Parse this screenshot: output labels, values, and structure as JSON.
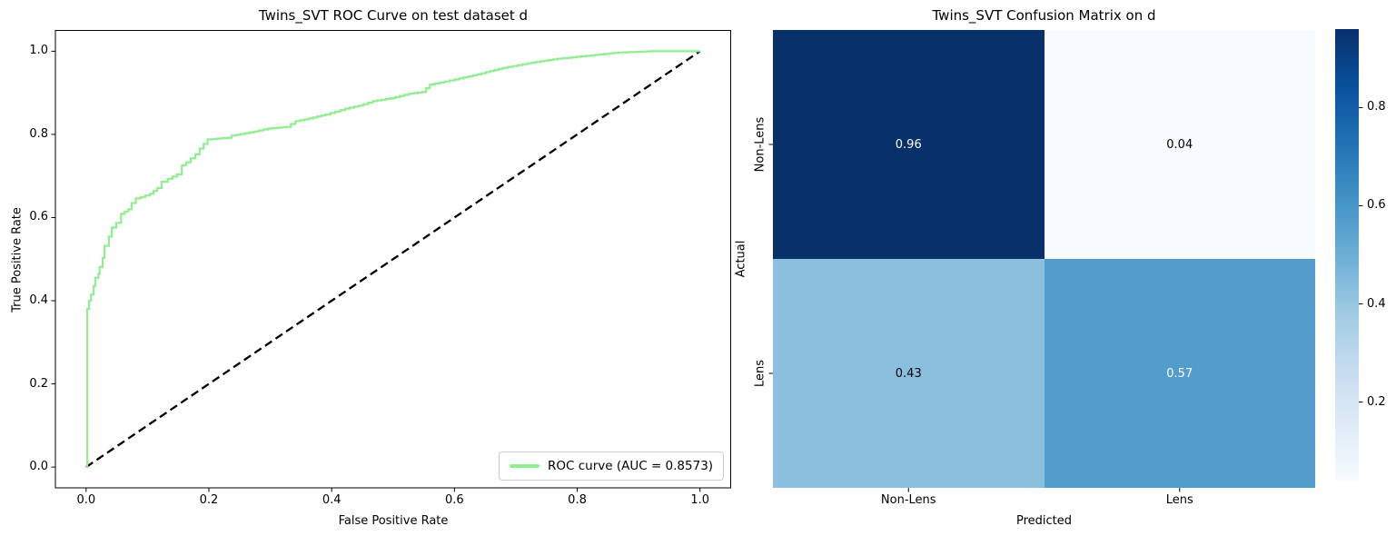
{
  "figure_background": "#ffffff",
  "chart_data": [
    {
      "type": "line",
      "title": "Twins_SVT ROC Curve on test dataset d",
      "xlabel": "False Positive Rate",
      "ylabel": "True Positive Rate",
      "xlim": [
        -0.05,
        1.05
      ],
      "ylim": [
        -0.05,
        1.05
      ],
      "x_ticks": [
        0.0,
        0.2,
        0.4,
        0.6,
        0.8,
        1.0
      ],
      "x_tick_labels": [
        "0.0",
        "0.2",
        "0.4",
        "0.6",
        "0.8",
        "1.0"
      ],
      "y_ticks": [
        0.0,
        0.2,
        0.4,
        0.6,
        0.8,
        1.0
      ],
      "y_tick_labels": [
        "0.0",
        "0.2",
        "0.4",
        "0.6",
        "0.8",
        "1.0"
      ],
      "grid": false,
      "legend_position": "lower right",
      "series": [
        {
          "name": "ROC curve (AUC = 0.8573)",
          "color": "#90ee90",
          "style": "solid",
          "auc": 0.8573,
          "points": [
            [
              0.0,
              0.0
            ],
            [
              0.002,
              0.06
            ],
            [
              0.002,
              0.38
            ],
            [
              0.005,
              0.4
            ],
            [
              0.008,
              0.415
            ],
            [
              0.012,
              0.435
            ],
            [
              0.015,
              0.455
            ],
            [
              0.02,
              0.465
            ],
            [
              0.022,
              0.481
            ],
            [
              0.027,
              0.503
            ],
            [
              0.03,
              0.532
            ],
            [
              0.037,
              0.554
            ],
            [
              0.042,
              0.576
            ],
            [
              0.049,
              0.587
            ],
            [
              0.057,
              0.609
            ],
            [
              0.069,
              0.62
            ],
            [
              0.074,
              0.635
            ],
            [
              0.081,
              0.646
            ],
            [
              0.089,
              0.649
            ],
            [
              0.104,
              0.657
            ],
            [
              0.116,
              0.671
            ],
            [
              0.123,
              0.686
            ],
            [
              0.133,
              0.693
            ],
            [
              0.148,
              0.704
            ],
            [
              0.156,
              0.726
            ],
            [
              0.163,
              0.733
            ],
            [
              0.178,
              0.752
            ],
            [
              0.185,
              0.766
            ],
            [
              0.198,
              0.788
            ],
            [
              0.23,
              0.792
            ],
            [
              0.237,
              0.797
            ],
            [
              0.274,
              0.807
            ],
            [
              0.296,
              0.814
            ],
            [
              0.326,
              0.818
            ],
            [
              0.341,
              0.832
            ],
            [
              0.356,
              0.836
            ],
            [
              0.39,
              0.848
            ],
            [
              0.422,
              0.862
            ],
            [
              0.444,
              0.869
            ],
            [
              0.467,
              0.88
            ],
            [
              0.496,
              0.887
            ],
            [
              0.526,
              0.898
            ],
            [
              0.548,
              0.902
            ],
            [
              0.56,
              0.92
            ],
            [
              0.6,
              0.932
            ],
            [
              0.63,
              0.942
            ],
            [
              0.679,
              0.96
            ],
            [
              0.719,
              0.971
            ],
            [
              0.768,
              0.982
            ],
            [
              0.822,
              0.99
            ],
            [
              0.867,
              0.997
            ],
            [
              0.92,
              1.0
            ],
            [
              1.0,
              1.0
            ]
          ]
        },
        {
          "name": "chance-diagonal",
          "color": "#000000",
          "style": "dashed",
          "points": [
            [
              0.0,
              0.0
            ],
            [
              1.0,
              1.0
            ]
          ]
        }
      ]
    },
    {
      "type": "heatmap",
      "title": "Twins_SVT Confusion Matrix on d",
      "xlabel": "Predicted",
      "ylabel": "Actual",
      "x_labels": [
        "Non-Lens",
        "Lens"
      ],
      "y_labels": [
        "Non-Lens",
        "Lens"
      ],
      "values": [
        [
          0.96,
          0.04
        ],
        [
          0.43,
          0.57
        ]
      ],
      "cell_labels": [
        [
          "0.96",
          "0.04"
        ],
        [
          "0.43",
          "0.57"
        ]
      ],
      "cell_colors": [
        [
          "#08306b",
          "#f7fbff"
        ],
        [
          "#8abfdd",
          "#529dcb"
        ]
      ],
      "cell_text_colors": [
        [
          "#ffffff",
          "#000000"
        ],
        [
          "#000000",
          "#ffffff"
        ]
      ],
      "colormap": "Blues",
      "colorbar": {
        "vmin": 0.04,
        "vmax": 0.96,
        "ticks": [
          0.8,
          0.6,
          0.4,
          0.2
        ],
        "tick_labels": [
          "0.8",
          "0.6",
          "0.4",
          "0.2"
        ],
        "gradient_top_to_bottom": [
          [
            "0%",
            "#08306b"
          ],
          [
            "12.5%",
            "#08519c"
          ],
          [
            "25%",
            "#2171b5"
          ],
          [
            "37.5%",
            "#4292c6"
          ],
          [
            "50%",
            "#6baed6"
          ],
          [
            "62.5%",
            "#9ecae1"
          ],
          [
            "75%",
            "#c6dbef"
          ],
          [
            "87.5%",
            "#deebf7"
          ],
          [
            "100%",
            "#f7fbff"
          ]
        ]
      }
    }
  ]
}
